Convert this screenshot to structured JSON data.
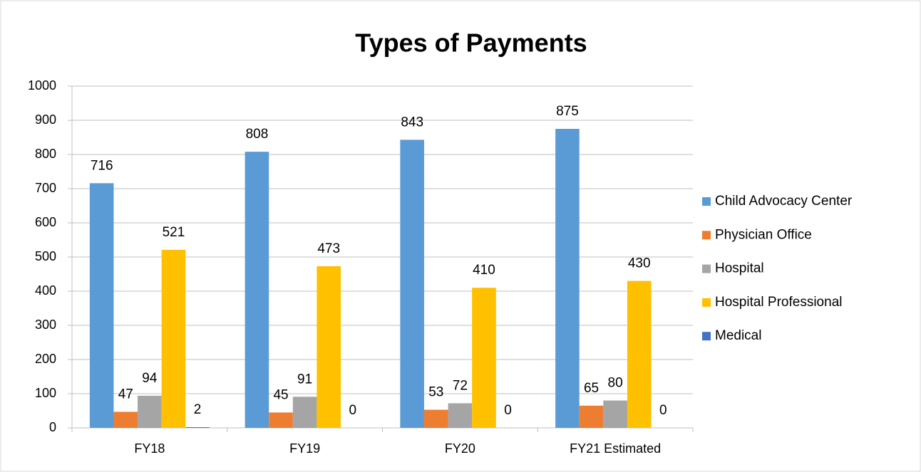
{
  "chart_data": {
    "type": "bar",
    "title": "Types of Payments",
    "categories": [
      "FY18",
      "FY19",
      "FY20",
      "FY21 Estimated"
    ],
    "series": [
      {
        "name": "Child Advocacy Center",
        "color": "#5b9bd5",
        "values": [
          716,
          808,
          843,
          875
        ]
      },
      {
        "name": "Physician Office",
        "color": "#ed7d31",
        "values": [
          47,
          45,
          53,
          65
        ]
      },
      {
        "name": "Hospital",
        "color": "#a5a5a5",
        "values": [
          94,
          91,
          72,
          80
        ]
      },
      {
        "name": "Hospital Professional",
        "color": "#ffc000",
        "values": [
          521,
          473,
          410,
          430
        ]
      },
      {
        "name": "Medical",
        "color": "#4472c4",
        "values": [
          2,
          0,
          0,
          0
        ]
      }
    ],
    "ylim": [
      0,
      1000
    ],
    "yticks": [
      0,
      100,
      200,
      300,
      400,
      500,
      600,
      700,
      800,
      900,
      1000
    ],
    "grid": true,
    "legend": "right"
  }
}
